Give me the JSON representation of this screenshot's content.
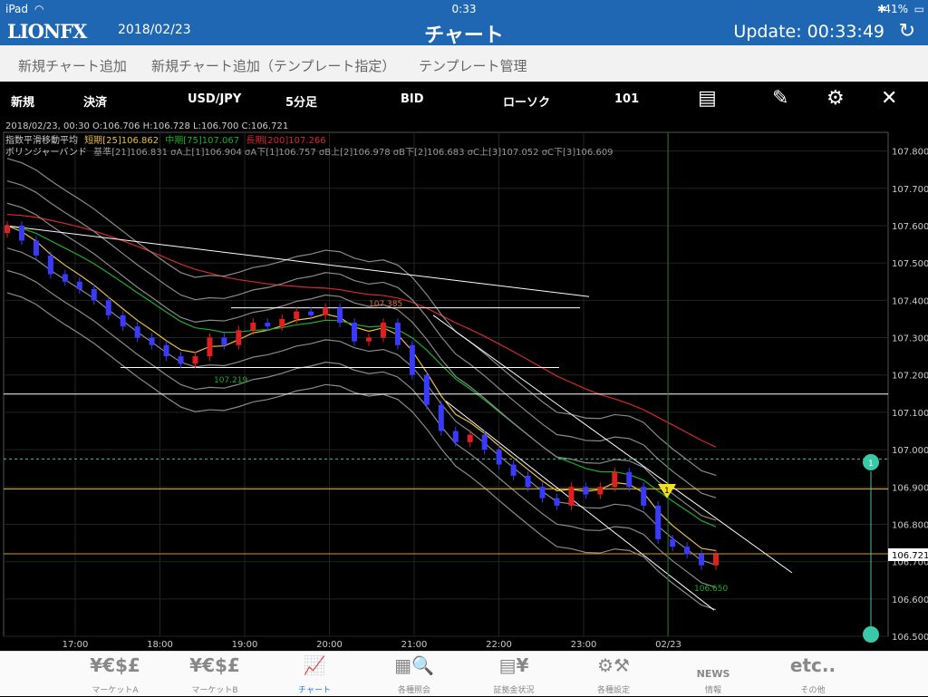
{
  "status_bar": {
    "device": "iPad",
    "time": "0:33",
    "battery": "41%"
  },
  "header": {
    "logo": "LIONFX",
    "date": "2018/02/23",
    "title": "チャート",
    "update": "Update: 00:33:49"
  },
  "menu": [
    "新規チャート追加",
    "新規チャート追加（テンプレート指定）",
    "テンプレート管理"
  ],
  "toolbar": {
    "new": "新規",
    "settle": "決済",
    "pair": "USD/JPY",
    "timeframe": "5分足",
    "price_type": "BID",
    "chart_type": "ローソク",
    "count": "101"
  },
  "info": {
    "line1": "2018/02/23, 00:30    O:106.706    H:106.728    L:106.700    C:106.721",
    "ma_label": "指数平滑移動平均",
    "ma_short": "短期[25]106.862",
    "ma_mid": "中期[75]107.067",
    "ma_long": "長期[200]107.266",
    "bb_label": "ボリンジャーバンド",
    "bb_values": "基準[21]106.831  σA上[1]106.904  σA下[1]106.757  σB上[2]106.978  σB下[2]106.683  σC上[3]107.052  σC下[3]106.609"
  },
  "annotations": {
    "high": "107.385",
    "low": "107.219",
    "recent_low": "106.650",
    "marker": "1"
  },
  "current_price": "106.721",
  "colors": {
    "header": "#1f67b3",
    "up": "#e02020",
    "down": "#3a3aff",
    "ma_short": "#e8c03a",
    "ma_mid": "#1fae2a",
    "ma_long": "#d42a2a",
    "active_tab": "#1e7ce0"
  },
  "nav": [
    {
      "icon": "¥€$£",
      "label": "マーケットA",
      "name": "nav-market-a"
    },
    {
      "icon": "¥€$£",
      "label": "マーケットB",
      "name": "nav-market-b"
    },
    {
      "icon": "chart-icon",
      "label": "チャート",
      "name": "nav-chart"
    },
    {
      "icon": "search-icon",
      "label": "各種照会",
      "name": "nav-inquiry"
    },
    {
      "icon": "margin-icon",
      "label": "証拠金状況",
      "name": "nav-margin"
    },
    {
      "icon": "settings-icon",
      "label": "各種設定",
      "name": "nav-settings"
    },
    {
      "icon": "NEWS",
      "label": "情報",
      "name": "nav-news"
    },
    {
      "icon": "etc..",
      "label": "その他",
      "name": "nav-etc"
    }
  ],
  "chart_data": {
    "type": "candlestick",
    "timeframe": "5分足",
    "ylim": [
      106.5,
      107.85
    ],
    "y_ticks": [
      "107.800",
      "107.700",
      "107.600",
      "107.500",
      "107.400",
      "107.300",
      "107.200",
      "107.100",
      "107.000",
      "106.900",
      "106.800",
      "106.700",
      "106.600",
      "106.500"
    ],
    "x_ticks": [
      "17:00",
      "18:00",
      "19:00",
      "20:00",
      "21:00",
      "22:00",
      "23:00",
      "02/23"
    ],
    "close": [
      107.6,
      107.56,
      107.52,
      107.47,
      107.45,
      107.43,
      107.4,
      107.36,
      107.33,
      107.3,
      107.28,
      107.25,
      107.23,
      107.25,
      107.3,
      107.28,
      107.32,
      107.34,
      107.33,
      107.35,
      107.37,
      107.36,
      107.38,
      107.34,
      107.29,
      107.3,
      107.34,
      107.28,
      107.2,
      107.12,
      107.05,
      107.02,
      107.04,
      107.0,
      106.96,
      106.93,
      106.9,
      106.87,
      106.85,
      106.9,
      106.88,
      106.9,
      106.94,
      106.9,
      106.85,
      106.76,
      106.74,
      106.72,
      106.69,
      106.72
    ],
    "current_price": 106.721,
    "horizontal_lines": [
      107.149,
      106.895,
      106.721,
      106.975
    ]
  }
}
